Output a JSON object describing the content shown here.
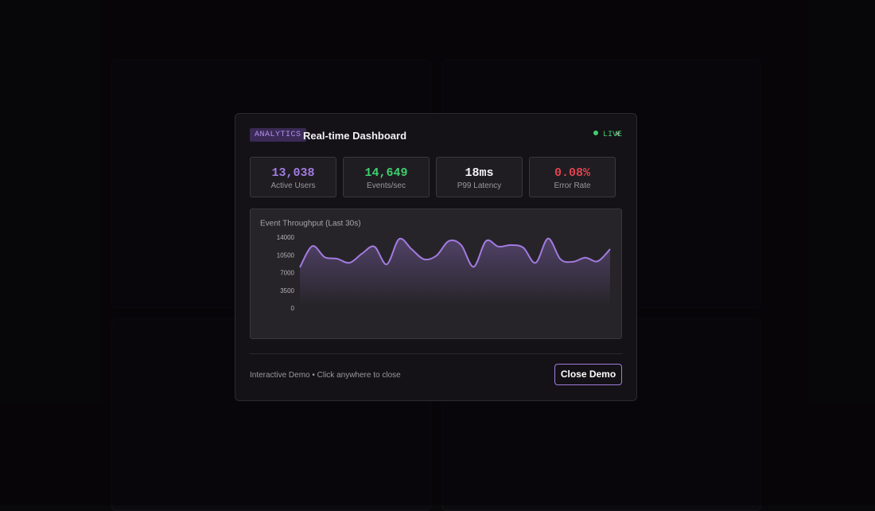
{
  "modal": {
    "badge": "ANALYTICS",
    "title": "Real-time Dashboard",
    "status": "LIVE",
    "stats": [
      {
        "value": "13,038",
        "label": "Active Users"
      },
      {
        "value": "14,649",
        "label": "Events/sec"
      },
      {
        "value": "18ms",
        "label": "P99 Latency"
      },
      {
        "value": "0.08%",
        "label": "Error Rate"
      }
    ],
    "footer_text": "Interactive Demo • Click anywhere to close",
    "button": "Close Demo"
  },
  "chart_data": {
    "type": "area",
    "title": "Event Throughput (Last 30s)",
    "values": [
      8200,
      12400,
      10200,
      9900,
      9100,
      10900,
      12300,
      8800,
      13800,
      11800,
      9800,
      10500,
      13400,
      12600,
      8300,
      13400,
      12300,
      12600,
      12100,
      9100,
      13900,
      9800,
      9300,
      10100,
      9400,
      11800
    ],
    "color": "#a27be0",
    "ylim": [
      0,
      14000
    ],
    "yticks": [
      0,
      3500,
      7000,
      10500,
      14000
    ]
  }
}
